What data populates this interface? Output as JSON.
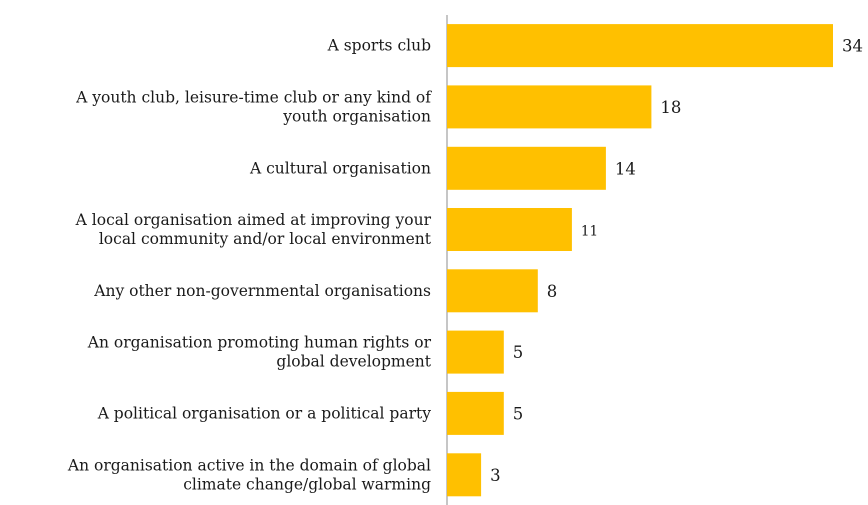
{
  "chart_data": {
    "type": "bar",
    "orientation": "horizontal",
    "categories": [
      "A sports club",
      "A youth club, leisure-time club or any kind of youth organisation",
      "A cultural organisation",
      "A local organisation aimed at improving your local community and/or local environment",
      "Any other non-governmental organisations",
      "An organisation promoting human rights or global development",
      "A political organisation or a political party",
      "An organisation active in the domain of global climate change/global warming"
    ],
    "category_lines": [
      [
        "A sports club"
      ],
      [
        "A youth club, leisure-time club or any kind of",
        "youth organisation"
      ],
      [
        "A cultural organisation"
      ],
      [
        "A local organisation aimed at improving your",
        "local community and/or local environment"
      ],
      [
        "Any other non-governmental organisations"
      ],
      [
        "An organisation promoting human rights or",
        "global development"
      ],
      [
        "A political organisation or a political party"
      ],
      [
        "An organisation active in the domain of global",
        "climate change/global warming"
      ]
    ],
    "values": [
      34,
      18,
      14,
      11,
      8,
      5,
      5,
      3
    ],
    "value_labels": [
      "34",
      "18",
      "14",
      "11",
      "8",
      "5",
      "5",
      "3"
    ],
    "title": "",
    "xlabel": "",
    "ylabel": "",
    "xlim": [
      0,
      34
    ],
    "grid": false,
    "legend": "none",
    "bar_color": "#FFC000",
    "axis_color": "#8c8c8c",
    "text_color": "#1a1a1a"
  }
}
